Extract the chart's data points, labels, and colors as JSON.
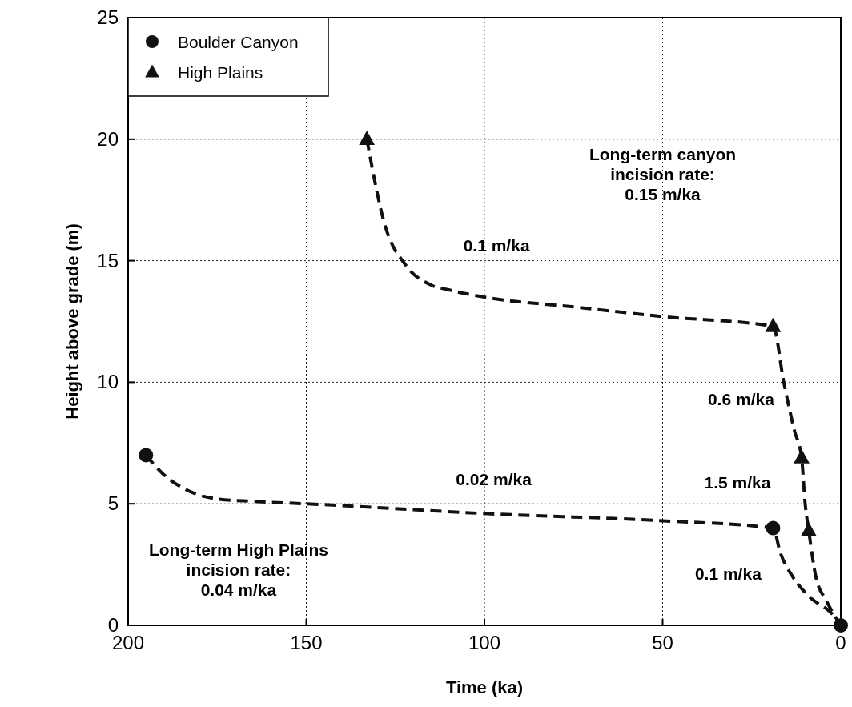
{
  "chart_data": {
    "type": "scatter",
    "xlabel": "Time (ka)",
    "ylabel": "Height above grade (m)",
    "xlim": [
      200,
      0
    ],
    "ylim": [
      0,
      25
    ],
    "xticks": [
      200,
      150,
      100,
      50,
      0
    ],
    "yticks": [
      0,
      5,
      10,
      15,
      20,
      25
    ],
    "grid": true,
    "legend": "top left",
    "series": [
      {
        "name": "Boulder Canyon",
        "marker": "circle",
        "color": "#111111",
        "x": [
          195,
          19,
          0
        ],
        "values": [
          7,
          4,
          0
        ]
      },
      {
        "name": "High Plains",
        "marker": "triangle",
        "color": "#111111",
        "x": [
          133,
          19,
          11,
          9
        ],
        "values": [
          20,
          12.3,
          6.9,
          3.9
        ]
      },
      {
        "type": "line",
        "line_style": "dashed",
        "marker": "none",
        "color": "#111111",
        "x": [
          195,
          190,
          184,
          175,
          165,
          150,
          100,
          50,
          19,
          17,
          13.5,
          9,
          2,
          0
        ],
        "values": [
          7,
          6.2,
          5.6,
          5.2,
          5.1,
          5,
          4.6,
          4.3,
          4,
          3,
          2,
          1.2,
          0.4,
          0
        ]
      },
      {
        "type": "line",
        "line_style": "dashed",
        "marker": "none",
        "color": "#111111",
        "x": [
          133,
          128,
          122,
          115,
          110,
          100,
          75,
          50,
          19,
          16,
          13,
          11,
          10,
          9,
          7,
          4,
          0
        ],
        "values": [
          20,
          16.5,
          14.8,
          14,
          13.8,
          13.5,
          13.1,
          12.7,
          12.3,
          10,
          8,
          6.9,
          5,
          3.9,
          2,
          1,
          0
        ]
      }
    ],
    "annotations": [
      "Long-term canyon\nincision rate:\n0.15 m/ka",
      "0.1 m/ka",
      "0.6 m/ka",
      "1.5 m/ka",
      "0.02 m/ka",
      "0.1 m/ka",
      "Long-term High Plains\nincision rate:\n0.04 m/ka"
    ]
  }
}
